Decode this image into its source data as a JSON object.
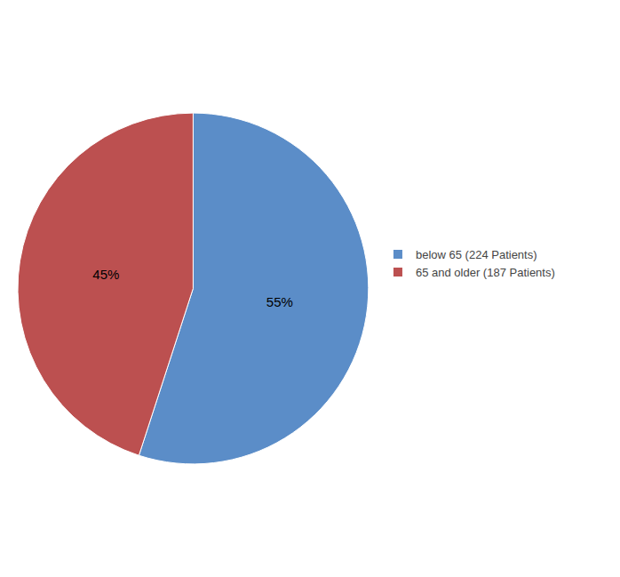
{
  "chart_data": {
    "type": "pie",
    "categories": [
      "below 65 (224 Patients)",
      "65 and older (187 Patients)"
    ],
    "values": [
      55,
      45
    ],
    "value_labels": [
      "55%",
      "45%"
    ],
    "colors": [
      "#5B8DC8",
      "#BC5050"
    ],
    "data_labels": true,
    "legend": "right"
  }
}
